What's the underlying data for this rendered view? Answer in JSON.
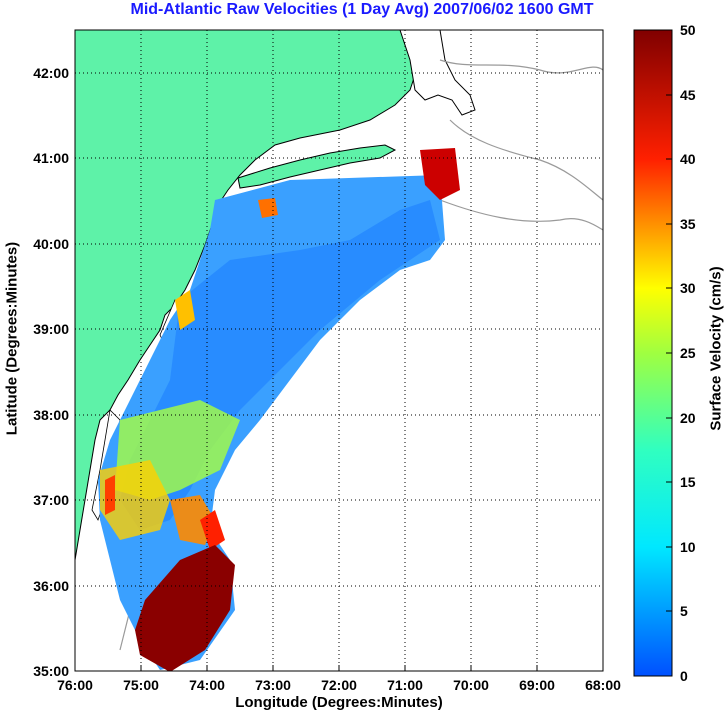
{
  "title": "Mid-Atlantic Raw Velocities (1 Day Avg) 2007/06/02 1600 GMT",
  "xlabel": "Longitude (Degrees:Minutes)",
  "ylabel": "Latitude (Degrees:Minutes)",
  "colorbar": {
    "label": "Surface Velocity (cm/s)",
    "ticks": [
      "0",
      "5",
      "10",
      "15",
      "20",
      "25",
      "30",
      "35",
      "40",
      "45",
      "50"
    ],
    "range": [
      0,
      50
    ]
  },
  "map": {
    "lon_ticks": [
      "76:00",
      "75:00",
      "74:00",
      "73:00",
      "72:00",
      "71:00",
      "70:00",
      "69:00",
      "68:00"
    ],
    "lat_ticks": [
      "35:00",
      "36:00",
      "37:00",
      "38:00",
      "39:00",
      "40:00",
      "41:00",
      "42:00"
    ],
    "lon_range": [
      -76.0,
      -68.0
    ],
    "lat_range": [
      35.0,
      42.5
    ],
    "grid": "dotted",
    "colors": {
      "land": "#5ef2a8",
      "coast_outline": "#000000",
      "bathymetry": "#9a9a9a",
      "title": "#1a1aff"
    }
  }
}
